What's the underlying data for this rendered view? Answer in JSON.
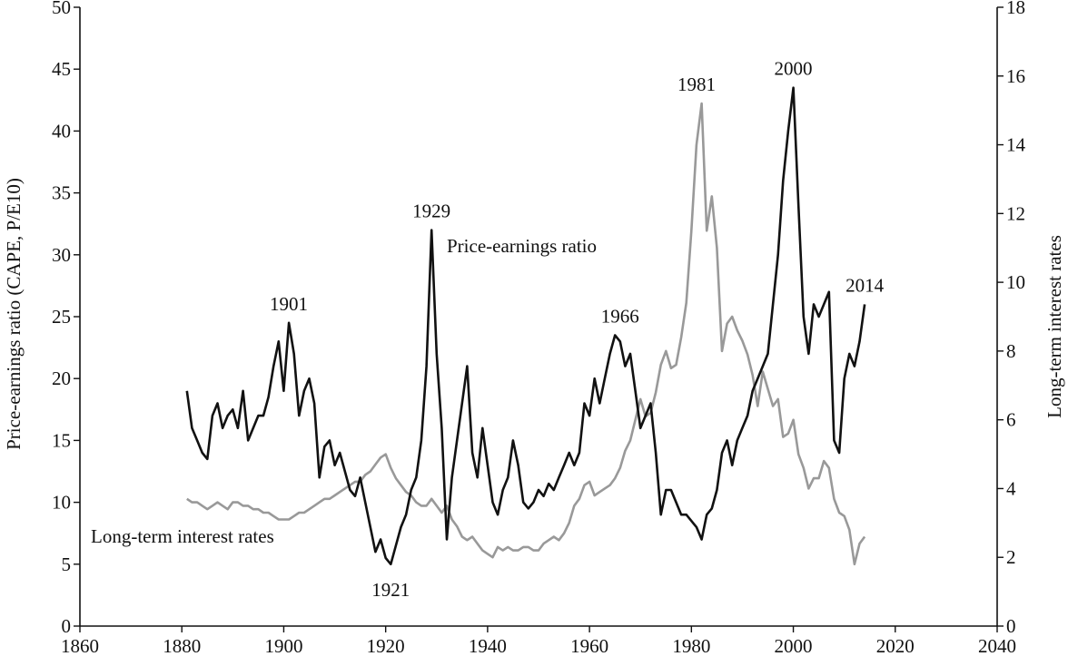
{
  "chart_data": {
    "type": "line",
    "ylabel": "Price-earnings ratio (CAPE, P/E10)",
    "y2label": "Long-term interest rates",
    "xlim": [
      1860,
      2040
    ],
    "ylim": [
      0,
      50
    ],
    "y2lim": [
      0,
      18
    ],
    "x_ticks": [
      "1860",
      "1880",
      "1900",
      "1920",
      "1940",
      "1960",
      "1980",
      "2000",
      "2020",
      "2040"
    ],
    "y_ticks": [
      "0",
      "5",
      "10",
      "15",
      "20",
      "25",
      "30",
      "35",
      "40",
      "45",
      "50"
    ],
    "y2_ticks": [
      "0",
      "2",
      "4",
      "6",
      "8",
      "10",
      "12",
      "14",
      "16",
      "18"
    ],
    "grid": false,
    "series": [
      {
        "name": "Price-earnings ratio",
        "axis": "left",
        "color": "#111111",
        "x": [
          1881,
          1882,
          1883,
          1884,
          1885,
          1886,
          1887,
          1888,
          1889,
          1890,
          1891,
          1892,
          1893,
          1894,
          1895,
          1896,
          1897,
          1898,
          1899,
          1900,
          1901,
          1902,
          1903,
          1904,
          1905,
          1906,
          1907,
          1908,
          1909,
          1910,
          1911,
          1912,
          1913,
          1914,
          1915,
          1916,
          1917,
          1918,
          1919,
          1920,
          1921,
          1922,
          1923,
          1924,
          1925,
          1926,
          1927,
          1928,
          1929,
          1930,
          1931,
          1932,
          1933,
          1934,
          1935,
          1936,
          1937,
          1938,
          1939,
          1940,
          1941,
          1942,
          1943,
          1944,
          1945,
          1946,
          1947,
          1948,
          1949,
          1950,
          1951,
          1952,
          1953,
          1954,
          1955,
          1956,
          1957,
          1958,
          1959,
          1960,
          1961,
          1962,
          1963,
          1964,
          1965,
          1966,
          1967,
          1968,
          1969,
          1970,
          1971,
          1972,
          1973,
          1974,
          1975,
          1976,
          1977,
          1978,
          1979,
          1980,
          1981,
          1982,
          1983,
          1984,
          1985,
          1986,
          1987,
          1988,
          1989,
          1990,
          1991,
          1992,
          1993,
          1994,
          1995,
          1996,
          1997,
          1998,
          1999,
          2000,
          2001,
          2002,
          2003,
          2004,
          2005,
          2006,
          2007,
          2008,
          2009,
          2010,
          2011,
          2012,
          2013,
          2014
        ],
        "values": [
          19,
          16,
          15,
          14,
          13.5,
          17,
          18,
          16,
          17,
          17.5,
          16,
          19,
          15,
          16,
          17,
          17,
          18.5,
          21,
          23,
          19,
          24.5,
          22,
          17,
          19,
          20,
          18,
          12,
          14.5,
          15,
          13,
          14,
          12.5,
          11,
          10.5,
          12,
          10,
          8,
          6,
          7,
          5.5,
          5,
          6.5,
          8,
          9,
          11,
          12,
          15,
          21,
          32,
          22,
          16,
          7,
          12,
          15,
          18,
          21,
          14,
          12,
          16,
          13,
          10,
          9,
          11,
          12,
          15,
          13,
          10,
          9.5,
          10,
          11,
          10.5,
          11.5,
          11,
          12,
          13,
          14,
          13,
          14,
          18,
          17,
          20,
          18,
          20,
          22,
          23.5,
          23,
          21,
          22,
          19,
          16,
          17,
          18,
          14,
          9,
          11,
          11,
          10,
          9,
          9,
          8.5,
          8,
          7,
          9,
          9.5,
          11,
          14,
          15,
          13,
          15,
          16,
          17,
          19,
          20,
          21,
          22,
          26,
          30,
          36,
          40,
          43.5,
          34,
          25,
          22,
          26,
          25,
          26,
          27,
          15,
          14,
          20,
          22,
          21,
          23,
          26
        ]
      },
      {
        "name": "Long-term interest rates",
        "axis": "right",
        "color": "#999999",
        "x": [
          1881,
          1882,
          1883,
          1884,
          1885,
          1886,
          1887,
          1888,
          1889,
          1890,
          1891,
          1892,
          1893,
          1894,
          1895,
          1896,
          1897,
          1898,
          1899,
          1900,
          1901,
          1902,
          1903,
          1904,
          1905,
          1906,
          1907,
          1908,
          1909,
          1910,
          1911,
          1912,
          1913,
          1914,
          1915,
          1916,
          1917,
          1918,
          1919,
          1920,
          1921,
          1922,
          1923,
          1924,
          1925,
          1926,
          1927,
          1928,
          1929,
          1930,
          1931,
          1932,
          1933,
          1934,
          1935,
          1936,
          1937,
          1938,
          1939,
          1940,
          1941,
          1942,
          1943,
          1944,
          1945,
          1946,
          1947,
          1948,
          1949,
          1950,
          1951,
          1952,
          1953,
          1954,
          1955,
          1956,
          1957,
          1958,
          1959,
          1960,
          1961,
          1962,
          1963,
          1964,
          1965,
          1966,
          1967,
          1968,
          1969,
          1970,
          1971,
          1972,
          1973,
          1974,
          1975,
          1976,
          1977,
          1978,
          1979,
          1980,
          1981,
          1982,
          1983,
          1984,
          1985,
          1986,
          1987,
          1988,
          1989,
          1990,
          1991,
          1992,
          1993,
          1994,
          1995,
          1996,
          1997,
          1998,
          1999,
          2000,
          2001,
          2002,
          2003,
          2004,
          2005,
          2006,
          2007,
          2008,
          2009,
          2010,
          2011,
          2012,
          2013,
          2014
        ],
        "values": [
          3.7,
          3.6,
          3.6,
          3.5,
          3.4,
          3.5,
          3.6,
          3.5,
          3.4,
          3.6,
          3.6,
          3.5,
          3.5,
          3.4,
          3.4,
          3.3,
          3.3,
          3.2,
          3.1,
          3.1,
          3.1,
          3.2,
          3.3,
          3.3,
          3.4,
          3.5,
          3.6,
          3.7,
          3.7,
          3.8,
          3.9,
          4.0,
          4.1,
          4.2,
          4.2,
          4.4,
          4.5,
          4.7,
          4.9,
          5.0,
          4.6,
          4.3,
          4.1,
          3.9,
          3.8,
          3.6,
          3.5,
          3.5,
          3.7,
          3.5,
          3.3,
          3.5,
          3.1,
          2.9,
          2.6,
          2.5,
          2.6,
          2.4,
          2.2,
          2.1,
          2.0,
          2.3,
          2.2,
          2.3,
          2.2,
          2.2,
          2.3,
          2.3,
          2.2,
          2.2,
          2.4,
          2.5,
          2.6,
          2.5,
          2.7,
          3.0,
          3.5,
          3.7,
          4.1,
          4.2,
          3.8,
          3.9,
          4.0,
          4.1,
          4.3,
          4.6,
          5.1,
          5.4,
          6.0,
          6.6,
          6.1,
          6.2,
          6.8,
          7.6,
          8.0,
          7.5,
          7.6,
          8.4,
          9.4,
          11.5,
          14.0,
          15.2,
          11.5,
          12.5,
          11.0,
          8.0,
          8.8,
          9.0,
          8.6,
          8.3,
          7.9,
          7.3,
          6.4,
          7.4,
          6.9,
          6.4,
          6.6,
          5.5,
          5.6,
          6.0,
          5.0,
          4.6,
          4.0,
          4.3,
          4.3,
          4.8,
          4.6,
          3.7,
          3.3,
          3.2,
          2.8,
          1.8,
          2.4,
          2.6
        ]
      }
    ],
    "annotations": [
      {
        "text": "1901",
        "x": 1901,
        "y": 24.5,
        "axis": "left"
      },
      {
        "text": "1921",
        "x": 1921,
        "y": 5,
        "axis": "left",
        "position": "below"
      },
      {
        "text": "1929",
        "x": 1929,
        "y": 32,
        "axis": "left"
      },
      {
        "text": "1966",
        "x": 1966,
        "y": 23.5,
        "axis": "left"
      },
      {
        "text": "1981",
        "x": 1981,
        "y": 15.2,
        "axis": "right"
      },
      {
        "text": "2000",
        "x": 2000,
        "y": 43.5,
        "axis": "left"
      },
      {
        "text": "2014",
        "x": 2014,
        "y": 26,
        "axis": "left"
      }
    ],
    "series_labels": [
      {
        "text": "Price-earnings ratio"
      },
      {
        "text": "Long-term interest rates"
      }
    ]
  }
}
